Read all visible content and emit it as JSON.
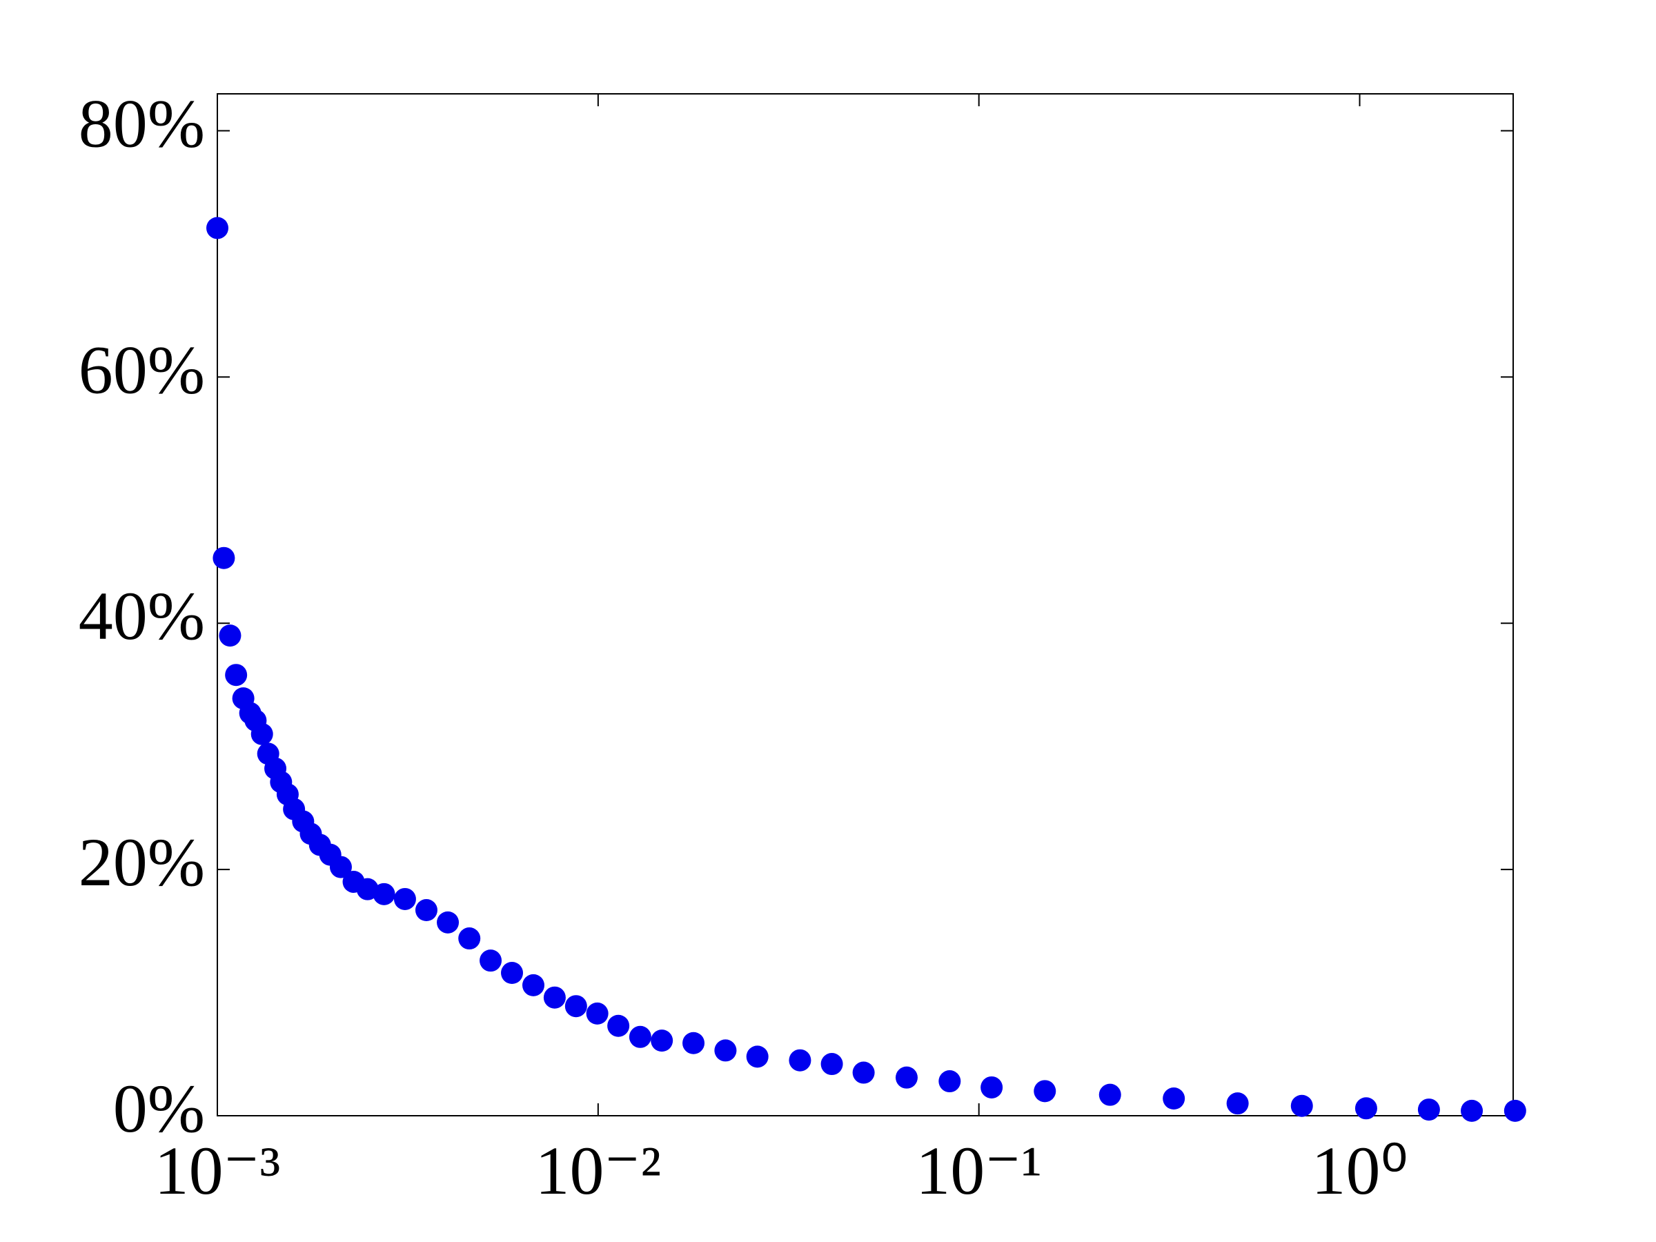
{
  "chart_data": {
    "type": "scatter",
    "color": "#0000ee",
    "xscale": "log",
    "x": [
      0.001,
      0.00104,
      0.00108,
      0.00112,
      0.00117,
      0.00122,
      0.00126,
      0.00131,
      0.00136,
      0.00142,
      0.00147,
      0.00153,
      0.00159,
      0.00168,
      0.00176,
      0.00186,
      0.00198,
      0.00211,
      0.00228,
      0.00248,
      0.00274,
      0.00311,
      0.00354,
      0.00403,
      0.00459,
      0.00522,
      0.00594,
      0.00676,
      0.00769,
      0.00875,
      0.00995,
      0.0113,
      0.0129,
      0.0147,
      0.0178,
      0.0216,
      0.0262,
      0.0339,
      0.0411,
      0.0498,
      0.0646,
      0.0838,
      0.108,
      0.149,
      0.221,
      0.325,
      0.478,
      0.705,
      1.04,
      1.52,
      1.97,
      2.56
    ],
    "values": [
      72.1,
      45.3,
      39.0,
      35.8,
      33.9,
      32.7,
      32.1,
      31.0,
      29.4,
      28.2,
      27.1,
      26.1,
      24.9,
      23.9,
      22.9,
      22.0,
      21.2,
      20.2,
      19.0,
      18.4,
      18.0,
      17.6,
      16.7,
      15.7,
      14.4,
      12.6,
      11.6,
      10.6,
      9.6,
      8.9,
      8.3,
      7.3,
      6.4,
      6.1,
      5.9,
      5.3,
      4.8,
      4.5,
      4.2,
      3.5,
      3.1,
      2.8,
      2.3,
      2.0,
      1.7,
      1.4,
      1.0,
      0.8,
      0.6,
      0.5,
      0.4,
      0.4
    ],
    "xlim": [
      0.001,
      2.53
    ],
    "ylim": [
      0,
      83
    ],
    "xticks": [
      {
        "value": 0.001,
        "label": "10⁻³"
      },
      {
        "value": 0.01,
        "label": "10⁻²"
      },
      {
        "value": 0.1,
        "label": "10⁻¹"
      },
      {
        "value": 1,
        "label": "10⁰"
      }
    ],
    "yticks": [
      {
        "value": 0,
        "label": "0%"
      },
      {
        "value": 20,
        "label": "20%"
      },
      {
        "value": 40,
        "label": "40%"
      },
      {
        "value": 60,
        "label": "60%"
      },
      {
        "value": 80,
        "label": "80%"
      }
    ]
  }
}
